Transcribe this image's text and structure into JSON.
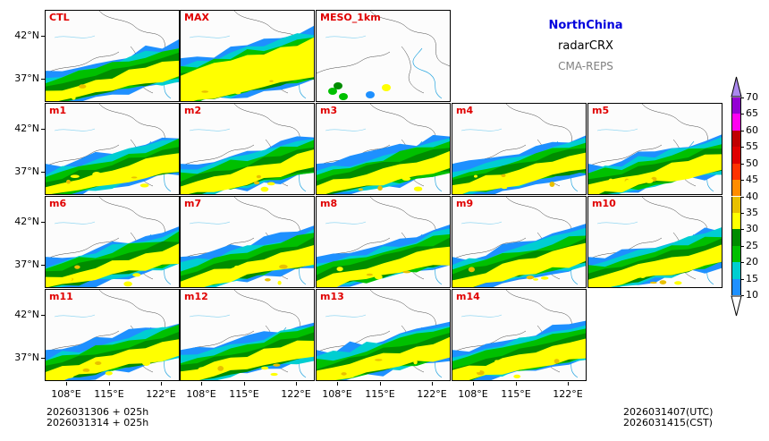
{
  "header": {
    "region": "NorthChina",
    "variable": "radarCRX",
    "model": "CMA-REPS",
    "region_color": "#0000dd",
    "model_color": "#808080"
  },
  "axes": {
    "lat_labels": [
      "42°N",
      "37°N"
    ],
    "lon_labels": [
      "108°E",
      "115°E",
      "122°E"
    ]
  },
  "panels": [
    {
      "label": "CTL"
    },
    {
      "label": "MAX"
    },
    {
      "label": "MESO_1km"
    },
    {
      "label": "m1"
    },
    {
      "label": "m2"
    },
    {
      "label": "m3"
    },
    {
      "label": "m4"
    },
    {
      "label": "m5"
    },
    {
      "label": "m6"
    },
    {
      "label": "m7"
    },
    {
      "label": "m8"
    },
    {
      "label": "m9"
    },
    {
      "label": "m10"
    },
    {
      "label": "m11"
    },
    {
      "label": "m12"
    },
    {
      "label": "m13"
    },
    {
      "label": "m14"
    }
  ],
  "colorbar": {
    "levels": [
      "10",
      "15",
      "20",
      "25",
      "30",
      "35",
      "40",
      "45",
      "50",
      "55",
      "60",
      "65",
      "70"
    ],
    "colors": [
      "#1e90ff",
      "#00ced1",
      "#00c000",
      "#008c00",
      "#ffff00",
      "#e8c000",
      "#ff8c00",
      "#ff3300",
      "#e00000",
      "#c00000",
      "#ff00f0",
      "#9400d3"
    ],
    "extend_top_color": "#aa88ee",
    "extend_bottom_color": "#ffffff",
    "label_color": "#e00000"
  },
  "footer": {
    "init_utc": "2026031306  +  025h",
    "init_cst": "2026031314  +  025h",
    "valid_utc": "2026031407(UTC)",
    "valid_cst": "2026031415(CST)"
  }
}
